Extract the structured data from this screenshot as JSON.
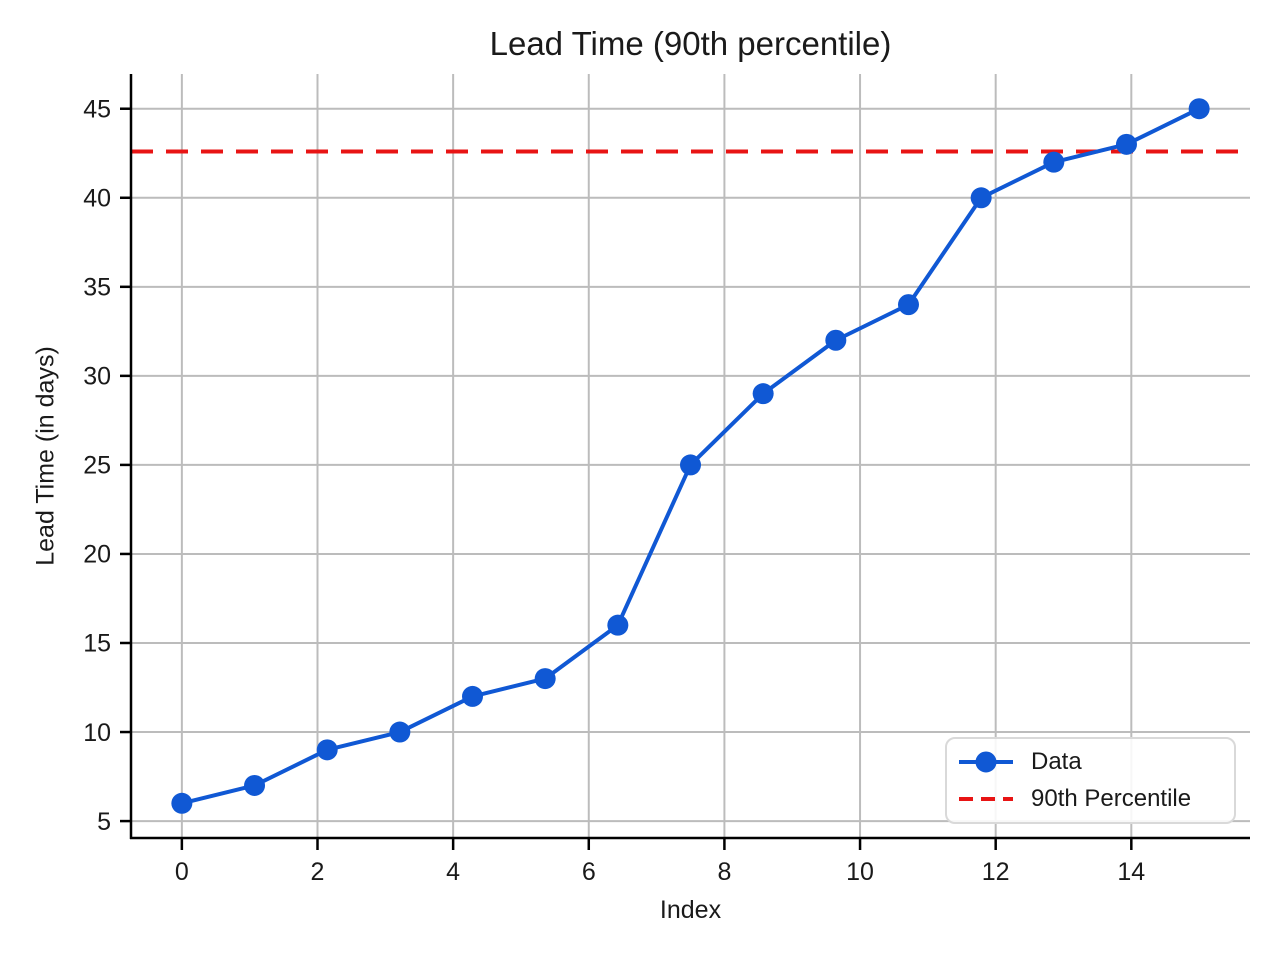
{
  "figure": {
    "title": "Lead Time (90th percentile)",
    "xlabel": "Index",
    "ylabel": "Lead Time (in days)"
  },
  "chart_data": {
    "type": "line",
    "title": "Lead Time (90th percentile)",
    "xlabel": "Index",
    "ylabel": "Lead Time (in days)",
    "x": [
      0,
      1.0714,
      2.1429,
      3.2143,
      4.2857,
      5.3571,
      6.4286,
      7.5,
      8.5714,
      9.6429,
      10.7143,
      11.7857,
      12.8571,
      13.9286,
      15
    ],
    "series": [
      {
        "name": "Data",
        "kind": "line-with-markers",
        "values": [
          6,
          7,
          9,
          10,
          12,
          13,
          16,
          25,
          29,
          32,
          34,
          40,
          42,
          43,
          45
        ],
        "color": "#1058d4",
        "marker": "circle"
      },
      {
        "name": "90th Percentile",
        "kind": "hline",
        "value": 42.6,
        "color": "#e81414",
        "style": "dashed"
      }
    ],
    "x_ticks": [
      0,
      2,
      4,
      6,
      8,
      10,
      12,
      14
    ],
    "y_ticks": [
      5,
      10,
      15,
      20,
      25,
      30,
      35,
      40,
      45
    ],
    "xlim": [
      -0.75,
      15.75
    ],
    "ylim": [
      4.05,
      46.95
    ],
    "grid": true,
    "grid_color": "#bcbcbc",
    "spine_color": "#000000",
    "text_color": "#1a1a1a",
    "legend_position": "lower right"
  }
}
